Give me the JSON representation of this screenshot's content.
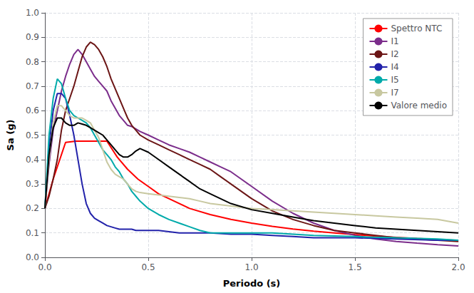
{
  "chart_data": {
    "type": "line",
    "xlabel": "Periodo (s)",
    "ylabel": "Sa (g)",
    "xlim": [
      0,
      2
    ],
    "ylim": [
      0,
      1
    ],
    "xticks": [
      {
        "value": 0,
        "label": "0.0"
      },
      0.5,
      {
        "value": 1,
        "label": "1.0"
      },
      1.5,
      {
        "value": 2,
        "label": "2.0"
      }
    ],
    "yticks": [
      {
        "value": 0,
        "label": "0.0"
      },
      0.1,
      0.2,
      0.3,
      0.4,
      0.5,
      0.6,
      0.7,
      0.8,
      0.9,
      {
        "value": 1,
        "label": "1.0"
      }
    ],
    "grid": true,
    "legend": "upper right",
    "series": [
      {
        "name": "Spettro NTC",
        "color": "#FF0000",
        "x": [
          0.0,
          0.04,
          0.08,
          0.1,
          0.15,
          0.2,
          0.25,
          0.3,
          0.35,
          0.4,
          0.45,
          0.5,
          0.55,
          0.6,
          0.7,
          0.8,
          0.9,
          1.0,
          1.1,
          1.2,
          1.3,
          1.4,
          1.5,
          1.6,
          1.7,
          1.8,
          1.9,
          2.0
        ],
        "values": [
          0.2,
          0.32,
          0.42,
          0.47,
          0.475,
          0.475,
          0.475,
          0.475,
          0.41,
          0.36,
          0.32,
          0.29,
          0.26,
          0.24,
          0.2,
          0.175,
          0.155,
          0.14,
          0.127,
          0.116,
          0.107,
          0.1,
          0.093,
          0.087,
          0.082,
          0.077,
          0.073,
          0.069
        ]
      },
      {
        "name": "I1",
        "color": "#7B2D8B",
        "x": [
          0.0,
          0.02,
          0.04,
          0.06,
          0.08,
          0.1,
          0.12,
          0.14,
          0.16,
          0.18,
          0.2,
          0.22,
          0.24,
          0.26,
          0.28,
          0.3,
          0.32,
          0.34,
          0.36,
          0.38,
          0.4,
          0.42,
          0.44,
          0.46,
          0.5,
          0.55,
          0.6,
          0.65,
          0.7,
          0.75,
          0.8,
          0.85,
          0.9,
          0.95,
          1.0,
          1.1,
          1.2,
          1.3,
          1.4,
          1.5,
          1.6,
          1.7,
          1.8,
          1.9,
          2.0
        ],
        "values": [
          0.2,
          0.38,
          0.52,
          0.6,
          0.68,
          0.74,
          0.79,
          0.83,
          0.85,
          0.83,
          0.8,
          0.77,
          0.74,
          0.72,
          0.7,
          0.68,
          0.64,
          0.61,
          0.58,
          0.56,
          0.54,
          0.535,
          0.525,
          0.515,
          0.5,
          0.48,
          0.46,
          0.445,
          0.43,
          0.41,
          0.39,
          0.37,
          0.35,
          0.32,
          0.29,
          0.23,
          0.18,
          0.14,
          0.11,
          0.09,
          0.075,
          0.065,
          0.058,
          0.052,
          0.047
        ]
      },
      {
        "name": "I2",
        "color": "#6B1515",
        "x": [
          0.0,
          0.02,
          0.04,
          0.06,
          0.08,
          0.1,
          0.12,
          0.14,
          0.16,
          0.18,
          0.2,
          0.22,
          0.24,
          0.26,
          0.28,
          0.3,
          0.32,
          0.34,
          0.36,
          0.38,
          0.4,
          0.42,
          0.44,
          0.46,
          0.5,
          0.55,
          0.6,
          0.65,
          0.7,
          0.75,
          0.8,
          0.85,
          0.9,
          0.95,
          1.0,
          1.1,
          1.2,
          1.3,
          1.4,
          1.5,
          1.6,
          1.7,
          1.8,
          1.9,
          2.0
        ],
        "values": [
          0.2,
          0.25,
          0.32,
          0.4,
          0.52,
          0.6,
          0.65,
          0.7,
          0.76,
          0.82,
          0.86,
          0.88,
          0.87,
          0.85,
          0.82,
          0.78,
          0.73,
          0.69,
          0.65,
          0.61,
          0.57,
          0.54,
          0.52,
          0.5,
          0.48,
          0.46,
          0.44,
          0.42,
          0.4,
          0.38,
          0.36,
          0.33,
          0.3,
          0.27,
          0.24,
          0.19,
          0.155,
          0.13,
          0.11,
          0.1,
          0.09,
          0.08,
          0.075,
          0.07,
          0.065
        ]
      },
      {
        "name": "I4",
        "color": "#2222AA",
        "x": [
          0.0,
          0.02,
          0.04,
          0.06,
          0.08,
          0.1,
          0.12,
          0.14,
          0.16,
          0.18,
          0.2,
          0.22,
          0.24,
          0.26,
          0.28,
          0.3,
          0.32,
          0.34,
          0.36,
          0.38,
          0.4,
          0.42,
          0.44,
          0.46,
          0.5,
          0.55,
          0.6,
          0.65,
          0.7,
          0.75,
          0.8,
          0.9,
          1.0,
          1.1,
          1.2,
          1.3,
          1.5,
          1.7,
          1.9,
          2.0
        ],
        "values": [
          0.2,
          0.45,
          0.6,
          0.67,
          0.67,
          0.65,
          0.58,
          0.5,
          0.4,
          0.3,
          0.22,
          0.18,
          0.16,
          0.15,
          0.14,
          0.13,
          0.125,
          0.12,
          0.115,
          0.115,
          0.115,
          0.115,
          0.11,
          0.11,
          0.11,
          0.11,
          0.105,
          0.1,
          0.1,
          0.1,
          0.1,
          0.095,
          0.095,
          0.09,
          0.085,
          0.08,
          0.08,
          0.075,
          0.07,
          0.07
        ]
      },
      {
        "name": "I5",
        "color": "#00AAAA",
        "x": [
          0.0,
          0.02,
          0.04,
          0.06,
          0.08,
          0.1,
          0.12,
          0.14,
          0.16,
          0.18,
          0.2,
          0.22,
          0.24,
          0.26,
          0.28,
          0.3,
          0.32,
          0.34,
          0.36,
          0.38,
          0.4,
          0.42,
          0.44,
          0.46,
          0.5,
          0.55,
          0.6,
          0.65,
          0.7,
          0.75,
          0.8,
          0.9,
          1.0,
          1.1,
          1.2,
          1.3,
          1.5,
          1.7,
          1.9,
          2.0
        ],
        "values": [
          0.2,
          0.5,
          0.65,
          0.73,
          0.71,
          0.65,
          0.6,
          0.58,
          0.57,
          0.56,
          0.55,
          0.53,
          0.5,
          0.47,
          0.44,
          0.42,
          0.4,
          0.37,
          0.35,
          0.32,
          0.3,
          0.27,
          0.25,
          0.23,
          0.2,
          0.175,
          0.155,
          0.14,
          0.125,
          0.11,
          0.1,
          0.1,
          0.1,
          0.1,
          0.095,
          0.09,
          0.085,
          0.08,
          0.075,
          0.07
        ]
      },
      {
        "name": "I7",
        "color": "#C8C8A0",
        "x": [
          0.0,
          0.02,
          0.04,
          0.06,
          0.08,
          0.1,
          0.12,
          0.14,
          0.16,
          0.18,
          0.2,
          0.22,
          0.24,
          0.26,
          0.28,
          0.3,
          0.32,
          0.34,
          0.36,
          0.38,
          0.4,
          0.42,
          0.44,
          0.46,
          0.5,
          0.55,
          0.6,
          0.65,
          0.7,
          0.75,
          0.8,
          0.9,
          1.0,
          1.1,
          1.2,
          1.3,
          1.4,
          1.5,
          1.6,
          1.7,
          1.8,
          1.9,
          2.0
        ],
        "values": [
          0.2,
          0.4,
          0.55,
          0.62,
          0.62,
          0.6,
          0.58,
          0.57,
          0.57,
          0.57,
          0.56,
          0.55,
          0.52,
          0.49,
          0.44,
          0.39,
          0.36,
          0.34,
          0.33,
          0.32,
          0.3,
          0.28,
          0.27,
          0.265,
          0.26,
          0.255,
          0.25,
          0.245,
          0.24,
          0.23,
          0.22,
          0.21,
          0.2,
          0.195,
          0.19,
          0.185,
          0.18,
          0.175,
          0.17,
          0.165,
          0.16,
          0.155,
          0.14
        ]
      },
      {
        "name": "Valore medio",
        "color": "#000000",
        "x": [
          0.0,
          0.02,
          0.04,
          0.06,
          0.08,
          0.1,
          0.12,
          0.14,
          0.16,
          0.18,
          0.2,
          0.22,
          0.24,
          0.26,
          0.28,
          0.3,
          0.32,
          0.34,
          0.36,
          0.38,
          0.4,
          0.42,
          0.44,
          0.46,
          0.5,
          0.55,
          0.6,
          0.65,
          0.7,
          0.75,
          0.8,
          0.9,
          1.0,
          1.1,
          1.2,
          1.3,
          1.4,
          1.5,
          1.6,
          1.7,
          1.8,
          1.9,
          2.0
        ],
        "values": [
          0.2,
          0.42,
          0.53,
          0.57,
          0.57,
          0.55,
          0.54,
          0.54,
          0.55,
          0.545,
          0.54,
          0.53,
          0.52,
          0.51,
          0.5,
          0.48,
          0.46,
          0.44,
          0.42,
          0.41,
          0.41,
          0.42,
          0.435,
          0.445,
          0.43,
          0.4,
          0.37,
          0.34,
          0.31,
          0.28,
          0.26,
          0.22,
          0.195,
          0.18,
          0.165,
          0.15,
          0.14,
          0.13,
          0.12,
          0.115,
          0.11,
          0.105,
          0.1
        ]
      }
    ]
  }
}
